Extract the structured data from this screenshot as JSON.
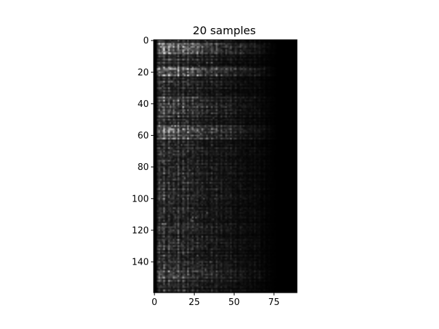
{
  "chart_data": {
    "type": "heatmap",
    "title": "20 samples",
    "xlabel": "",
    "ylabel": "",
    "colormap": "gray",
    "x_extent": [
      -0.5,
      89.5
    ],
    "y_extent": [
      -0.5,
      159.5
    ],
    "xticks": [
      0,
      25,
      50,
      75
    ],
    "yticks": [
      0,
      20,
      40,
      60,
      80,
      100,
      120,
      140
    ],
    "grid": false,
    "legend": "none",
    "colors": {
      "background": "#000000",
      "bright": "#ffffff",
      "axes": "#000000"
    }
  }
}
